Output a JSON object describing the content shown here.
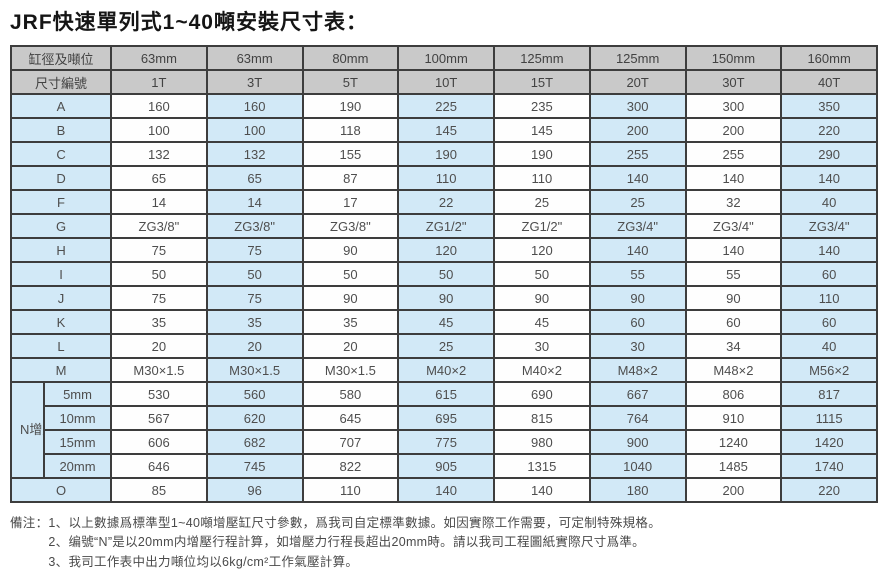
{
  "page": {
    "title": "JRF快速單列式1~40噸安裝尺寸表："
  },
  "table": {
    "header": {
      "bore_label": "缸徑及噸位",
      "code_label": "尺寸編號",
      "bores": [
        "63mm",
        "63mm",
        "80mm",
        "100mm",
        "125mm",
        "125mm",
        "150mm",
        "160mm"
      ],
      "tons": [
        "1T",
        "3T",
        "5T",
        "10T",
        "15T",
        "20T",
        "30T",
        "40T"
      ]
    },
    "rows": [
      {
        "label": "A",
        "values": [
          "160",
          "160",
          "190",
          "225",
          "235",
          "300",
          "300",
          "350"
        ]
      },
      {
        "label": "B",
        "values": [
          "100",
          "100",
          "118",
          "145",
          "145",
          "200",
          "200",
          "220"
        ]
      },
      {
        "label": "C",
        "values": [
          "132",
          "132",
          "155",
          "190",
          "190",
          "255",
          "255",
          "290"
        ]
      },
      {
        "label": "D",
        "values": [
          "65",
          "65",
          "87",
          "110",
          "110",
          "140",
          "140",
          "140"
        ]
      },
      {
        "label": "F",
        "values": [
          "14",
          "14",
          "17",
          "22",
          "25",
          "25",
          "32",
          "40"
        ]
      },
      {
        "label": "G",
        "values": [
          "ZG3/8\"",
          "ZG3/8\"",
          "ZG3/8\"",
          "ZG1/2\"",
          "ZG1/2\"",
          "ZG3/4\"",
          "ZG3/4\"",
          "ZG3/4\""
        ]
      },
      {
        "label": "H",
        "values": [
          "75",
          "75",
          "90",
          "120",
          "120",
          "140",
          "140",
          "140"
        ]
      },
      {
        "label": "I",
        "values": [
          "50",
          "50",
          "50",
          "50",
          "50",
          "55",
          "55",
          "60"
        ]
      },
      {
        "label": "J",
        "values": [
          "75",
          "75",
          "90",
          "90",
          "90",
          "90",
          "90",
          "110"
        ]
      },
      {
        "label": "K",
        "values": [
          "35",
          "35",
          "35",
          "45",
          "45",
          "60",
          "60",
          "60"
        ]
      },
      {
        "label": "L",
        "values": [
          "20",
          "20",
          "20",
          "25",
          "30",
          "30",
          "34",
          "40"
        ]
      },
      {
        "label": "M",
        "values": [
          "M30×1.5",
          "M30×1.5",
          "M30×1.5",
          "M40×2",
          "M40×2",
          "M48×2",
          "M48×2",
          "M56×2"
        ]
      }
    ],
    "n_section": {
      "label": "N增压行程",
      "rows": [
        {
          "label": "5mm",
          "values": [
            "530",
            "560",
            "580",
            "615",
            "690",
            "667",
            "806",
            "817"
          ]
        },
        {
          "label": "10mm",
          "values": [
            "567",
            "620",
            "645",
            "695",
            "815",
            "764",
            "910",
            "1115"
          ]
        },
        {
          "label": "15mm",
          "values": [
            "606",
            "682",
            "707",
            "775",
            "980",
            "900",
            "1240",
            "1420"
          ]
        },
        {
          "label": "20mm",
          "values": [
            "646",
            "745",
            "822",
            "905",
            "1315",
            "1040",
            "1485",
            "1740"
          ]
        }
      ]
    },
    "o_row": {
      "label": "O",
      "values": [
        "85",
        "96",
        "110",
        "140",
        "140",
        "180",
        "200",
        "220"
      ]
    }
  },
  "notes": {
    "label": "備注：",
    "items": [
      "1、以上數據爲標準型1~40噸增壓缸尺寸參數，爲我司自定標準數據。如因實際工作需要，可定制特殊規格。",
      "2、编號“N”是以20mm内增壓行程計算，如增壓力行程長超出20mm時。請以我司工程圖紙實際尺寸爲準。",
      "3、我司工作表中出力噸位均以6kg/cm²工作氣壓計算。"
    ]
  },
  "colors": {
    "header_bg": "#c9c9c9",
    "cell_blue": "#d2e9f7",
    "cell_white": "#fefefe",
    "border": "#3d3d3d",
    "text": "#4e4e4e"
  }
}
